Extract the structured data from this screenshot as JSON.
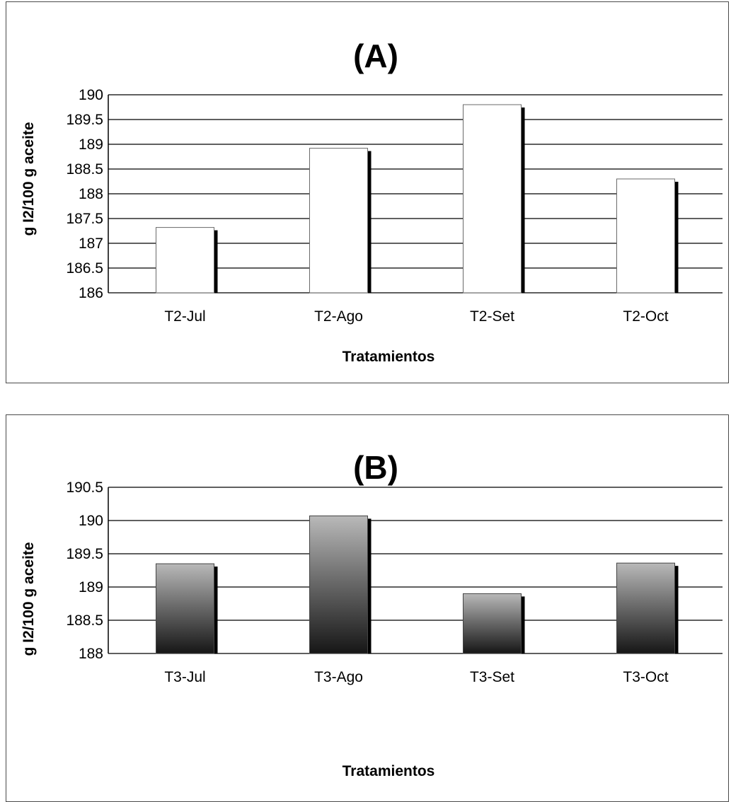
{
  "chart_data": [
    {
      "type": "bar",
      "title": "(A)",
      "xlabel": "Tratamientos",
      "ylabel": "g I2/100 g aceite",
      "categories": [
        "T2-Jul",
        "T2-Ago",
        "T2-Set",
        "T2-Oct"
      ],
      "values": [
        187.32,
        188.92,
        189.8,
        188.3
      ],
      "ylim": [
        186,
        190
      ],
      "yticks": [
        "186",
        "186.5",
        "187",
        "187.5",
        "188",
        "188.5",
        "189",
        "189.5",
        "190"
      ],
      "grid": true,
      "bar_style": "white-with-black-shadow"
    },
    {
      "type": "bar",
      "title": "(B)",
      "xlabel": "Tratamientos",
      "ylabel": "g I2/100 g aceite",
      "categories": [
        "T3-Jul",
        "T3-Ago",
        "T3-Set",
        "T3-Oct"
      ],
      "values": [
        189.35,
        190.07,
        188.9,
        189.36
      ],
      "ylim": [
        188,
        190.5
      ],
      "yticks": [
        "188",
        "188.5",
        "189",
        "189.5",
        "190",
        "190.5"
      ],
      "grid": true,
      "bar_style": "dark-gradient-with-black-shadow"
    }
  ]
}
